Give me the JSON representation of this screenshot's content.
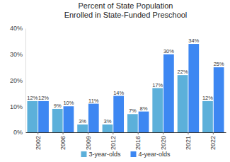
{
  "chart_data": {
    "type": "bar",
    "title": "Percent of State Population\nEnrolled in State-Funded Preschool",
    "categories": [
      "2002",
      "2006",
      "2009",
      "2012",
      "2016",
      "2020",
      "2021",
      "2022"
    ],
    "series": [
      {
        "name": "3-year-olds",
        "color": "#5cb0da",
        "values": [
          12,
          9,
          3,
          3,
          7,
          17,
          22,
          12
        ],
        "value_labels": [
          "12%",
          "9%",
          "3%",
          "3%",
          "7%",
          "17%",
          "22%",
          "12%"
        ]
      },
      {
        "name": "4-year-olds",
        "color": "#3d87f2",
        "values": [
          12,
          10,
          11,
          14,
          8,
          30,
          34,
          25
        ],
        "value_labels": [
          "12%",
          "10%",
          "11%",
          "14%",
          "8%",
          "30%",
          "34%",
          "25%"
        ]
      }
    ],
    "ylim": [
      0,
      40
    ],
    "yticks": [
      {
        "value": 0,
        "label": "0%"
      },
      {
        "value": 10,
        "label": "10%"
      },
      {
        "value": 20,
        "label": "20%"
      },
      {
        "value": 30,
        "label": "30%"
      },
      {
        "value": 40,
        "label": "40%"
      }
    ],
    "grid": false,
    "legend": "bottom",
    "data_labels": true
  }
}
